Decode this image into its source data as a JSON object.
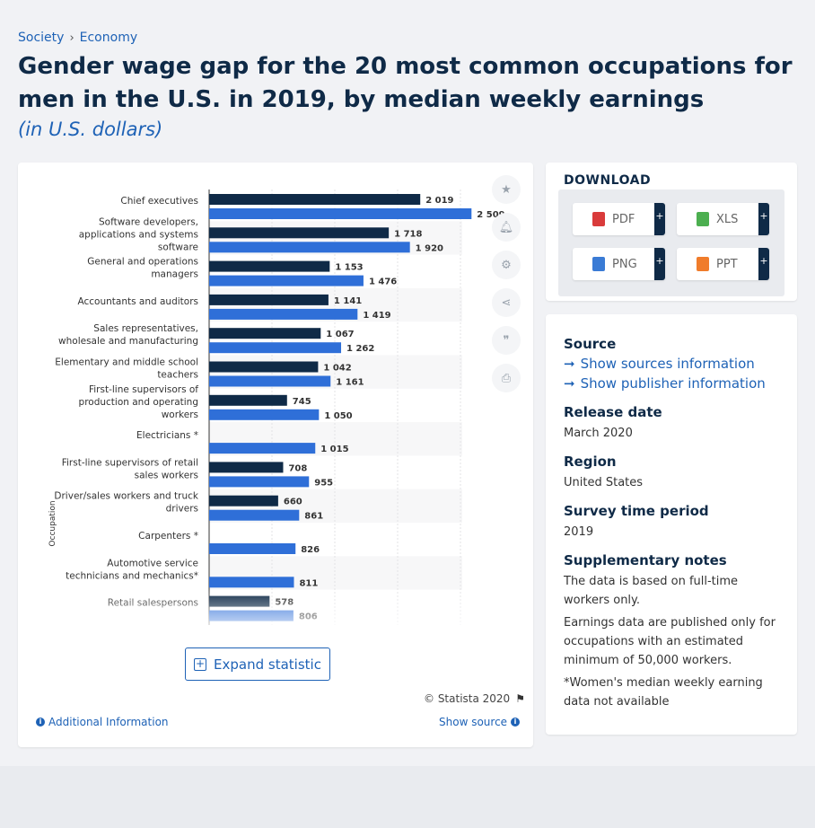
{
  "breadcrumb": {
    "items": [
      "Society",
      "Economy"
    ]
  },
  "title": "Gender wage gap for the 20 most common occupations for men in the U.S. in 2019, by median weekly earnings",
  "subtitle": "(in U.S. dollars)",
  "chart_data": {
    "type": "bar",
    "orientation": "horizontal",
    "ylabel": "Occupation",
    "categories": [
      "Chief executives",
      "Software developers, applications and systems software",
      "General and operations managers",
      "Accountants and auditors",
      "Sales representatives, wholesale and manufacturing",
      "Elementary and middle school teachers",
      "First-line supervisors of production and operating workers",
      "Electricians *",
      "First-line supervisors of retail sales workers",
      "Driver/sales workers and truck drivers",
      "Carpenters *",
      "Automotive service technicians and mechanics*",
      "Retail salespersons"
    ],
    "series": [
      {
        "values": [
          2019,
          1718,
          1153,
          1141,
          1067,
          1042,
          745,
          null,
          708,
          660,
          null,
          null,
          578
        ],
        "labels": [
          "2 019",
          "1 718",
          "1 153",
          "1 141",
          "1 067",
          "1 042",
          "745",
          "",
          "708",
          "660",
          "",
          "",
          "578"
        ]
      },
      {
        "values": [
          2509,
          1920,
          1476,
          1419,
          1262,
          1161,
          1050,
          1015,
          955,
          861,
          826,
          811,
          806
        ],
        "labels": [
          "2 509",
          "1 920",
          "1 476",
          "1 419",
          "1 262",
          "1 161",
          "1 050",
          "1 015",
          "955",
          "861",
          "826",
          "811",
          "806"
        ]
      }
    ],
    "colors": {
      "women": "#0f2a47",
      "men": "#2f6fd8"
    }
  },
  "chart_labels": [
    [
      "Chief executives"
    ],
    [
      "Software developers,",
      "applications and systems",
      "software"
    ],
    [
      "General and operations",
      "managers"
    ],
    [
      "Accountants and auditors"
    ],
    [
      "Sales representatives,",
      "wholesale and manufacturing"
    ],
    [
      "Elementary and middle school",
      "teachers"
    ],
    [
      "First-line supervisors of",
      "production and operating",
      "workers"
    ],
    [
      "Electricians *"
    ],
    [
      "First-line supervisors of retail",
      "sales workers"
    ],
    [
      "Driver/sales workers and truck",
      "drivers"
    ],
    [
      "Carpenters *"
    ],
    [
      "Automotive service",
      "technicians and mechanics*"
    ],
    [
      "Retail salespersons"
    ]
  ],
  "buttons": {
    "expand": "Expand statistic"
  },
  "footer": {
    "copyright": "© Statista 2020",
    "additional_info": "Additional Information",
    "show_source": "Show source"
  },
  "download": {
    "heading": "DOWNLOAD",
    "formats": [
      {
        "label": "PDF",
        "color": "#d93b3b"
      },
      {
        "label": "XLS",
        "color": "#4caf50"
      },
      {
        "label": "PNG",
        "color": "#3a7bd5"
      },
      {
        "label": "PPT",
        "color": "#f07c2b"
      }
    ],
    "plus": "+"
  },
  "info": {
    "source_heading": "Source",
    "show_sources": "Show sources information",
    "show_publisher": "Show publisher information",
    "release_heading": "Release date",
    "release_value": "March 2020",
    "region_heading": "Region",
    "region_value": "United States",
    "survey_heading": "Survey time period",
    "survey_value": "2019",
    "notes_heading": "Supplementary notes",
    "notes": [
      "The data is based on full-time workers only.",
      "Earnings data are published only for occupations with an estimated minimum of 50,000 workers.",
      "*Women's median weekly earning data not available"
    ]
  }
}
